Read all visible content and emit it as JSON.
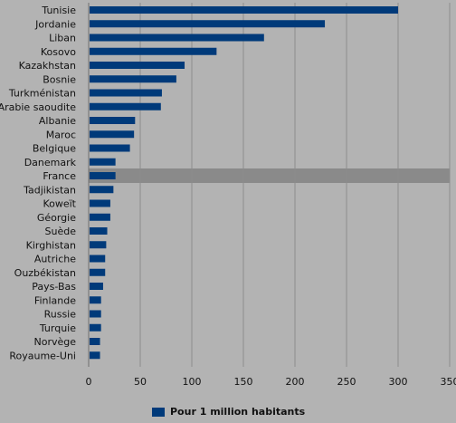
{
  "chart_data": {
    "type": "bar",
    "orientation": "horizontal",
    "categories": [
      "Tunisie",
      "Jordanie",
      "Liban",
      "Kosovo",
      "Kazakhstan",
      "Bosnie",
      "Turkménistan",
      "Arabie saoudite",
      "Albanie",
      "Maroc",
      "Belgique",
      "Danemark",
      "France",
      "Tadjikistan",
      "Koweït",
      "Géorgie",
      "Suède",
      "Kirghistan",
      "Autriche",
      "Ouzbékistan",
      "Pays-Bas",
      "Finlande",
      "Russie",
      "Turquie",
      "Norvège",
      "Royaume-Uni"
    ],
    "series": [
      {
        "name": "Pour 1 million habitants",
        "values": [
          300,
          229,
          170,
          124,
          93,
          85,
          71,
          70,
          45,
          44,
          40,
          26,
          26,
          24,
          21,
          21,
          18,
          17,
          16,
          16,
          14,
          12,
          12,
          12,
          11,
          11
        ]
      }
    ],
    "highlight": "France",
    "xlim": [
      0,
      350
    ],
    "xticks": [
      0,
      50,
      100,
      150,
      200,
      250,
      300,
      350
    ],
    "xlabel": "",
    "ylabel": "",
    "title": "",
    "grid": "vertical",
    "legend_position": "bottom-center",
    "colors": {
      "bar": "#003a7a",
      "highlight_band": "#8a8a8a",
      "grid": "#8c8c8c",
      "background": "#b3b3b3",
      "text": "#111111"
    }
  }
}
